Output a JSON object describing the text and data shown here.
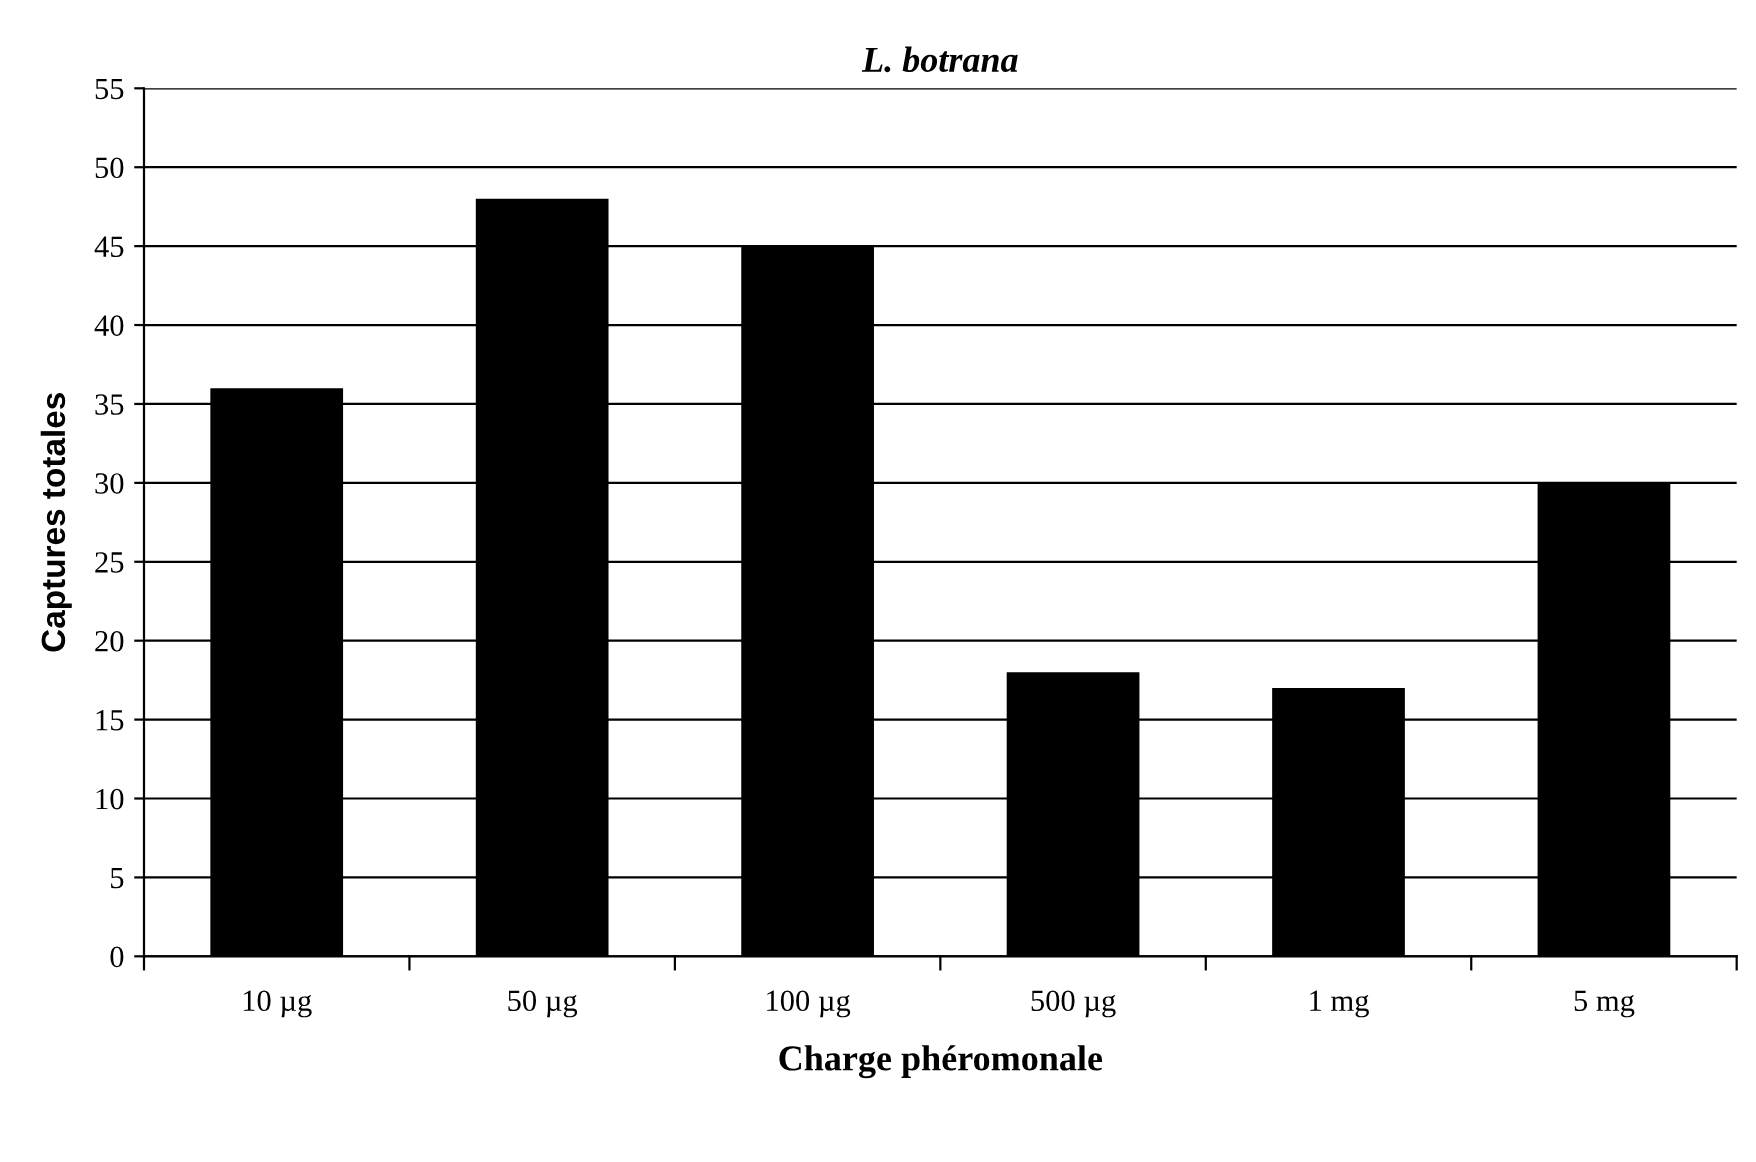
{
  "chart_data": {
    "type": "bar",
    "title": "L. botrana",
    "xlabel": "Charge phéromonale",
    "ylabel": "Captures totales",
    "categories": [
      "10 µg",
      "50 µg",
      "100 µg",
      "500 µg",
      "1 mg",
      "5 mg"
    ],
    "values": [
      36,
      48,
      45,
      18,
      17,
      30
    ],
    "color": "#000000",
    "ylim": [
      0,
      55
    ],
    "yticks": [
      0,
      5,
      10,
      15,
      20,
      25,
      30,
      35,
      40,
      45,
      50,
      55
    ],
    "grid": "y",
    "legend": false
  }
}
